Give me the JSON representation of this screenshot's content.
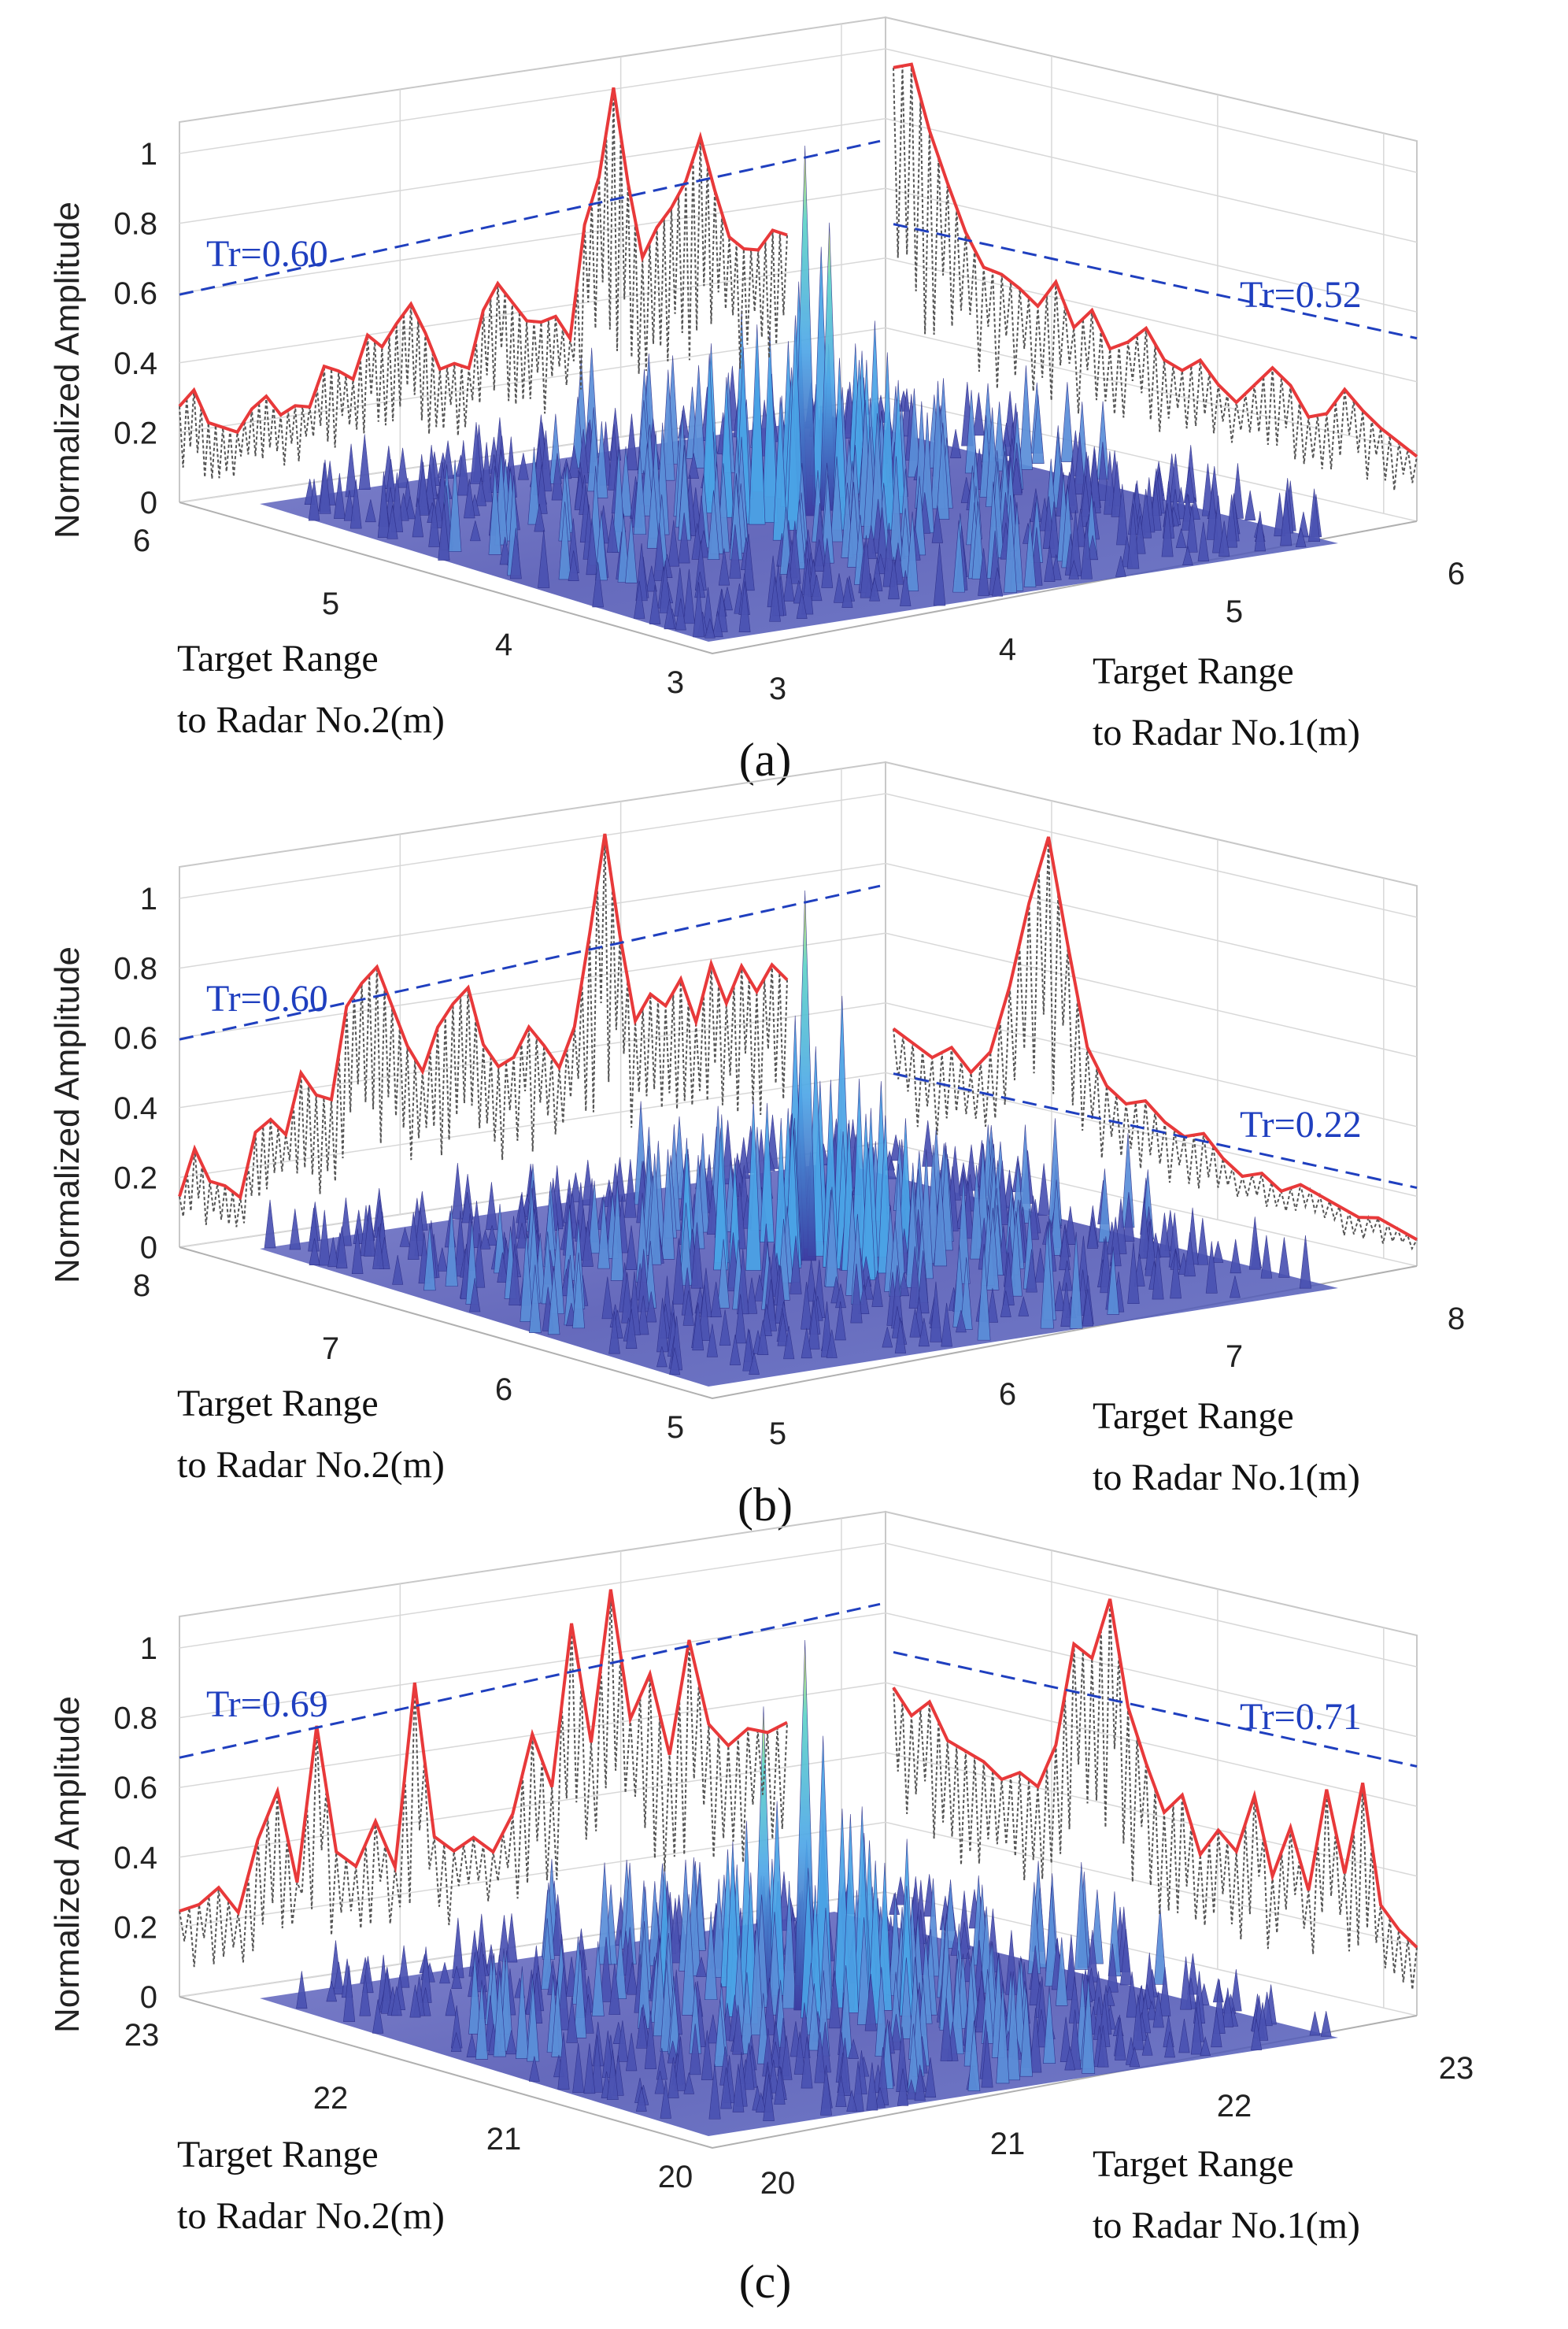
{
  "figure": {
    "ylabel": "Normalized Amplitude",
    "z_ticks": [
      "0",
      "0.2",
      "0.4",
      "0.6",
      "0.8",
      "1"
    ],
    "colors": {
      "envelope": "#e8393a",
      "raw_trace": "#555555",
      "threshold": "#1f3fbf",
      "grid": "#d8d8d8",
      "surface_low": "#3a3aa0",
      "surface_mid": "#4fa7e8",
      "surface_high": "#f2e64a"
    }
  },
  "chart_data": [
    {
      "type": "surface",
      "panel_label": "(a)",
      "title": "",
      "zlabel": "Normalized Amplitude",
      "zlim": [
        0,
        1
      ],
      "xlabel_line1": "Target Range",
      "xlabel_line2": "to Radar No.1(m)",
      "ylabel_line1": "Target Range",
      "ylabel_line2": "to Radar No.2(m)",
      "x_range": [
        3,
        6
      ],
      "x_ticks": [
        "3",
        "4",
        "5",
        "6"
      ],
      "y_range": [
        3,
        6
      ],
      "y_ticks": [
        "3",
        "4",
        "5",
        "6"
      ],
      "threshold_radar2": {
        "label": "Tr=0.60",
        "value": 0.6
      },
      "threshold_radar1": {
        "label": "Tr=0.52",
        "value": 0.52
      },
      "projection_radar2": [
        0.28,
        0.32,
        0.22,
        0.2,
        0.18,
        0.24,
        0.27,
        0.21,
        0.23,
        0.22,
        0.33,
        0.31,
        0.28,
        0.4,
        0.36,
        0.42,
        0.47,
        0.38,
        0.27,
        0.28,
        0.26,
        0.42,
        0.49,
        0.43,
        0.37,
        0.36,
        0.37,
        0.3,
        0.62,
        0.75,
        1.0,
        0.72,
        0.5,
        0.58,
        0.63,
        0.7,
        0.82,
        0.66,
        0.52,
        0.48,
        0.47,
        0.52,
        0.5
      ],
      "projection_radar1": [
        0.98,
        1.0,
        0.82,
        0.68,
        0.55,
        0.46,
        0.45,
        0.42,
        0.38,
        0.46,
        0.34,
        0.4,
        0.3,
        0.33,
        0.38,
        0.3,
        0.28,
        0.32,
        0.26,
        0.22,
        0.28,
        0.34,
        0.3,
        0.22,
        0.24,
        0.32,
        0.27,
        0.23,
        0.2,
        0.17
      ],
      "surface_peak": {
        "x": 4.6,
        "y": 4.6,
        "z": 1.0
      }
    },
    {
      "type": "surface",
      "panel_label": "(b)",
      "title": "",
      "zlabel": "Normalized Amplitude",
      "zlim": [
        0,
        1
      ],
      "xlabel_line1": "Target Range",
      "xlabel_line2": "to Radar No.1(m)",
      "ylabel_line1": "Target Range",
      "ylabel_line2": "to Radar No.2(m)",
      "x_range": [
        5,
        8
      ],
      "x_ticks": [
        "5",
        "6",
        "7",
        "8"
      ],
      "y_range": [
        5,
        8
      ],
      "y_ticks": [
        "5",
        "6",
        "7",
        "8"
      ],
      "threshold_radar2": {
        "label": "Tr=0.60",
        "value": 0.6
      },
      "threshold_radar1": {
        "label": "Tr=0.22",
        "value": 0.22
      },
      "projection_radar2": [
        0.15,
        0.28,
        0.18,
        0.16,
        0.12,
        0.3,
        0.33,
        0.28,
        0.45,
        0.38,
        0.36,
        0.62,
        0.68,
        0.72,
        0.6,
        0.48,
        0.4,
        0.52,
        0.58,
        0.62,
        0.45,
        0.38,
        0.4,
        0.48,
        0.42,
        0.35,
        0.46,
        0.72,
        1.0,
        0.7,
        0.45,
        0.52,
        0.48,
        0.55,
        0.42,
        0.58,
        0.46,
        0.56,
        0.48,
        0.55,
        0.5
      ],
      "projection_radar1": [
        0.36,
        0.33,
        0.3,
        0.34,
        0.28,
        0.35,
        0.55,
        0.8,
        1.0,
        0.7,
        0.42,
        0.32,
        0.28,
        0.3,
        0.25,
        0.22,
        0.24,
        0.18,
        0.14,
        0.16,
        0.12,
        0.15,
        0.13,
        0.11,
        0.09,
        0.1,
        0.08,
        0.06
      ],
      "surface_peak": {
        "x": 6.6,
        "y": 6.6,
        "z": 1.0
      }
    },
    {
      "type": "surface",
      "panel_label": "(c)",
      "title": "",
      "zlabel": "Normalized Amplitude",
      "zlim": [
        0,
        1
      ],
      "xlabel_line1": "Target Range",
      "xlabel_line2": "to Radar No.1(m)",
      "ylabel_line1": "Target Range",
      "ylabel_line2": "to Radar No.2(m)",
      "x_range": [
        20,
        23
      ],
      "x_ticks": [
        "20",
        "21",
        "22",
        "23"
      ],
      "y_range": [
        20,
        23
      ],
      "y_ticks": [
        "20",
        "21",
        "22",
        "23"
      ],
      "threshold_radar2": {
        "label": "Tr=0.69",
        "value": 0.69
      },
      "threshold_radar1": {
        "label": "Tr=0.71",
        "value": 0.71
      },
      "projection_radar2": [
        0.25,
        0.26,
        0.3,
        0.22,
        0.42,
        0.55,
        0.28,
        0.72,
        0.35,
        0.3,
        0.42,
        0.28,
        0.8,
        0.35,
        0.3,
        0.33,
        0.28,
        0.38,
        0.6,
        0.44,
        0.9,
        0.55,
        0.98,
        0.6,
        0.72,
        0.48,
        0.8,
        0.55,
        0.48,
        0.52,
        0.5,
        0.52
      ],
      "projection_radar1": [
        0.62,
        0.55,
        0.6,
        0.5,
        0.48,
        0.46,
        0.42,
        0.45,
        0.42,
        0.55,
        0.85,
        0.82,
        1.0,
        0.7,
        0.55,
        0.42,
        0.48,
        0.32,
        0.4,
        0.35,
        0.52,
        0.3,
        0.45,
        0.28,
        0.58,
        0.35,
        0.62,
        0.28,
        0.22,
        0.18
      ],
      "surface_peak": {
        "x": 21.6,
        "y": 21.6,
        "z": 1.0
      }
    }
  ]
}
